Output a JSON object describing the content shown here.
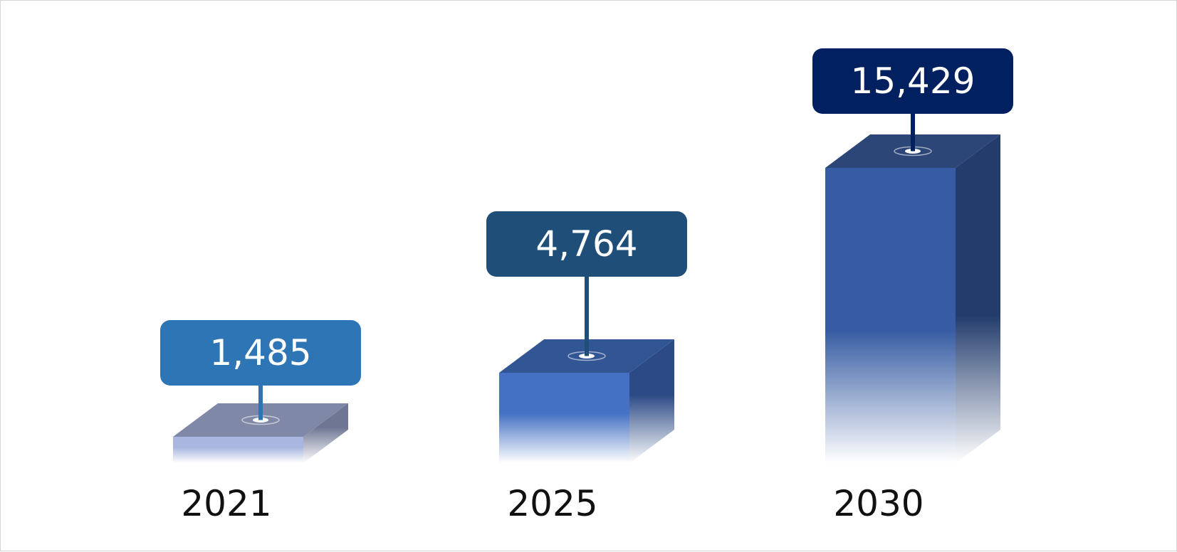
{
  "chart_data": {
    "type": "bar",
    "categories": [
      "2021",
      "2025",
      "2030"
    ],
    "values": [
      1485,
      4764,
      15429
    ],
    "value_labels": [
      "1,485",
      "4,764",
      "15,429"
    ],
    "title": "",
    "xlabel": "",
    "ylabel": "",
    "grid": false,
    "legend": "none",
    "colors": {
      "front": [
        "#a9b6e0",
        "#4471c4",
        "#375ca3"
      ],
      "top": [
        "#7f88a6",
        "#325694",
        "#2c4677"
      ],
      "side": [
        "#6e7694",
        "#2c4a85",
        "#233c6c"
      ],
      "label_box": [
        "#2e75b6",
        "#1f4e79",
        "#002060"
      ]
    }
  }
}
